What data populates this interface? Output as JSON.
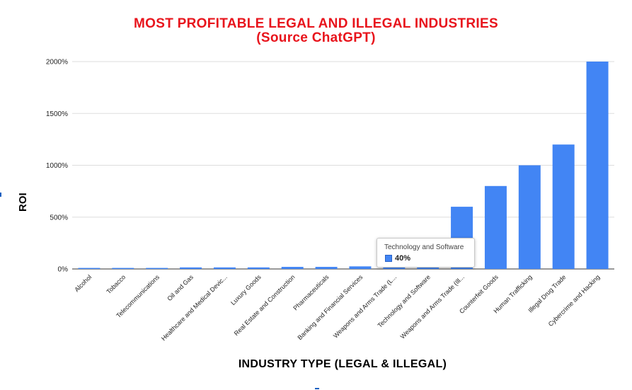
{
  "colors": {
    "title": "#e8141c",
    "bar": "#4285f4",
    "grid": "#dddddd",
    "axis": "#333333"
  },
  "tooltip": {
    "category": "Technology and Software",
    "value_label": "40%"
  },
  "chart_data": {
    "type": "bar",
    "title": "MOST PROFITABLE LEGAL AND ILLEGAL INDUSTRIES",
    "subtitle": "(Source ChatGPT)",
    "xlabel": "INDUSTRY TYPE (LEGAL & ILLEGAL)",
    "ylabel": "ROI",
    "ylim": [
      0,
      2000
    ],
    "yticks": [
      0,
      500,
      1000,
      1500,
      2000
    ],
    "ytick_labels": [
      "0%",
      "500%",
      "1000%",
      "1500%",
      "2000%"
    ],
    "grid": true,
    "legend": "none",
    "categories": [
      "Alcohol",
      "Tobacco",
      "Telecommunications",
      "Oil and Gas",
      "Healthcare and Medical Devic...",
      "Luxury Goods",
      "Real Estate and Construction",
      "Pharmaceuticals",
      "Banking and Financial Services",
      "Weapons and Arms Trade (L...",
      "Technology and Software",
      "Weapons and Arms Trade (Ill...",
      "Counterfeit Goods",
      "Human Trafficking",
      "Illegal Drug Trade",
      "Cybercrime and Hacking"
    ],
    "values": [
      10,
      10,
      10,
      15,
      15,
      15,
      20,
      20,
      25,
      30,
      40,
      600,
      800,
      1000,
      1200,
      2000
    ]
  }
}
